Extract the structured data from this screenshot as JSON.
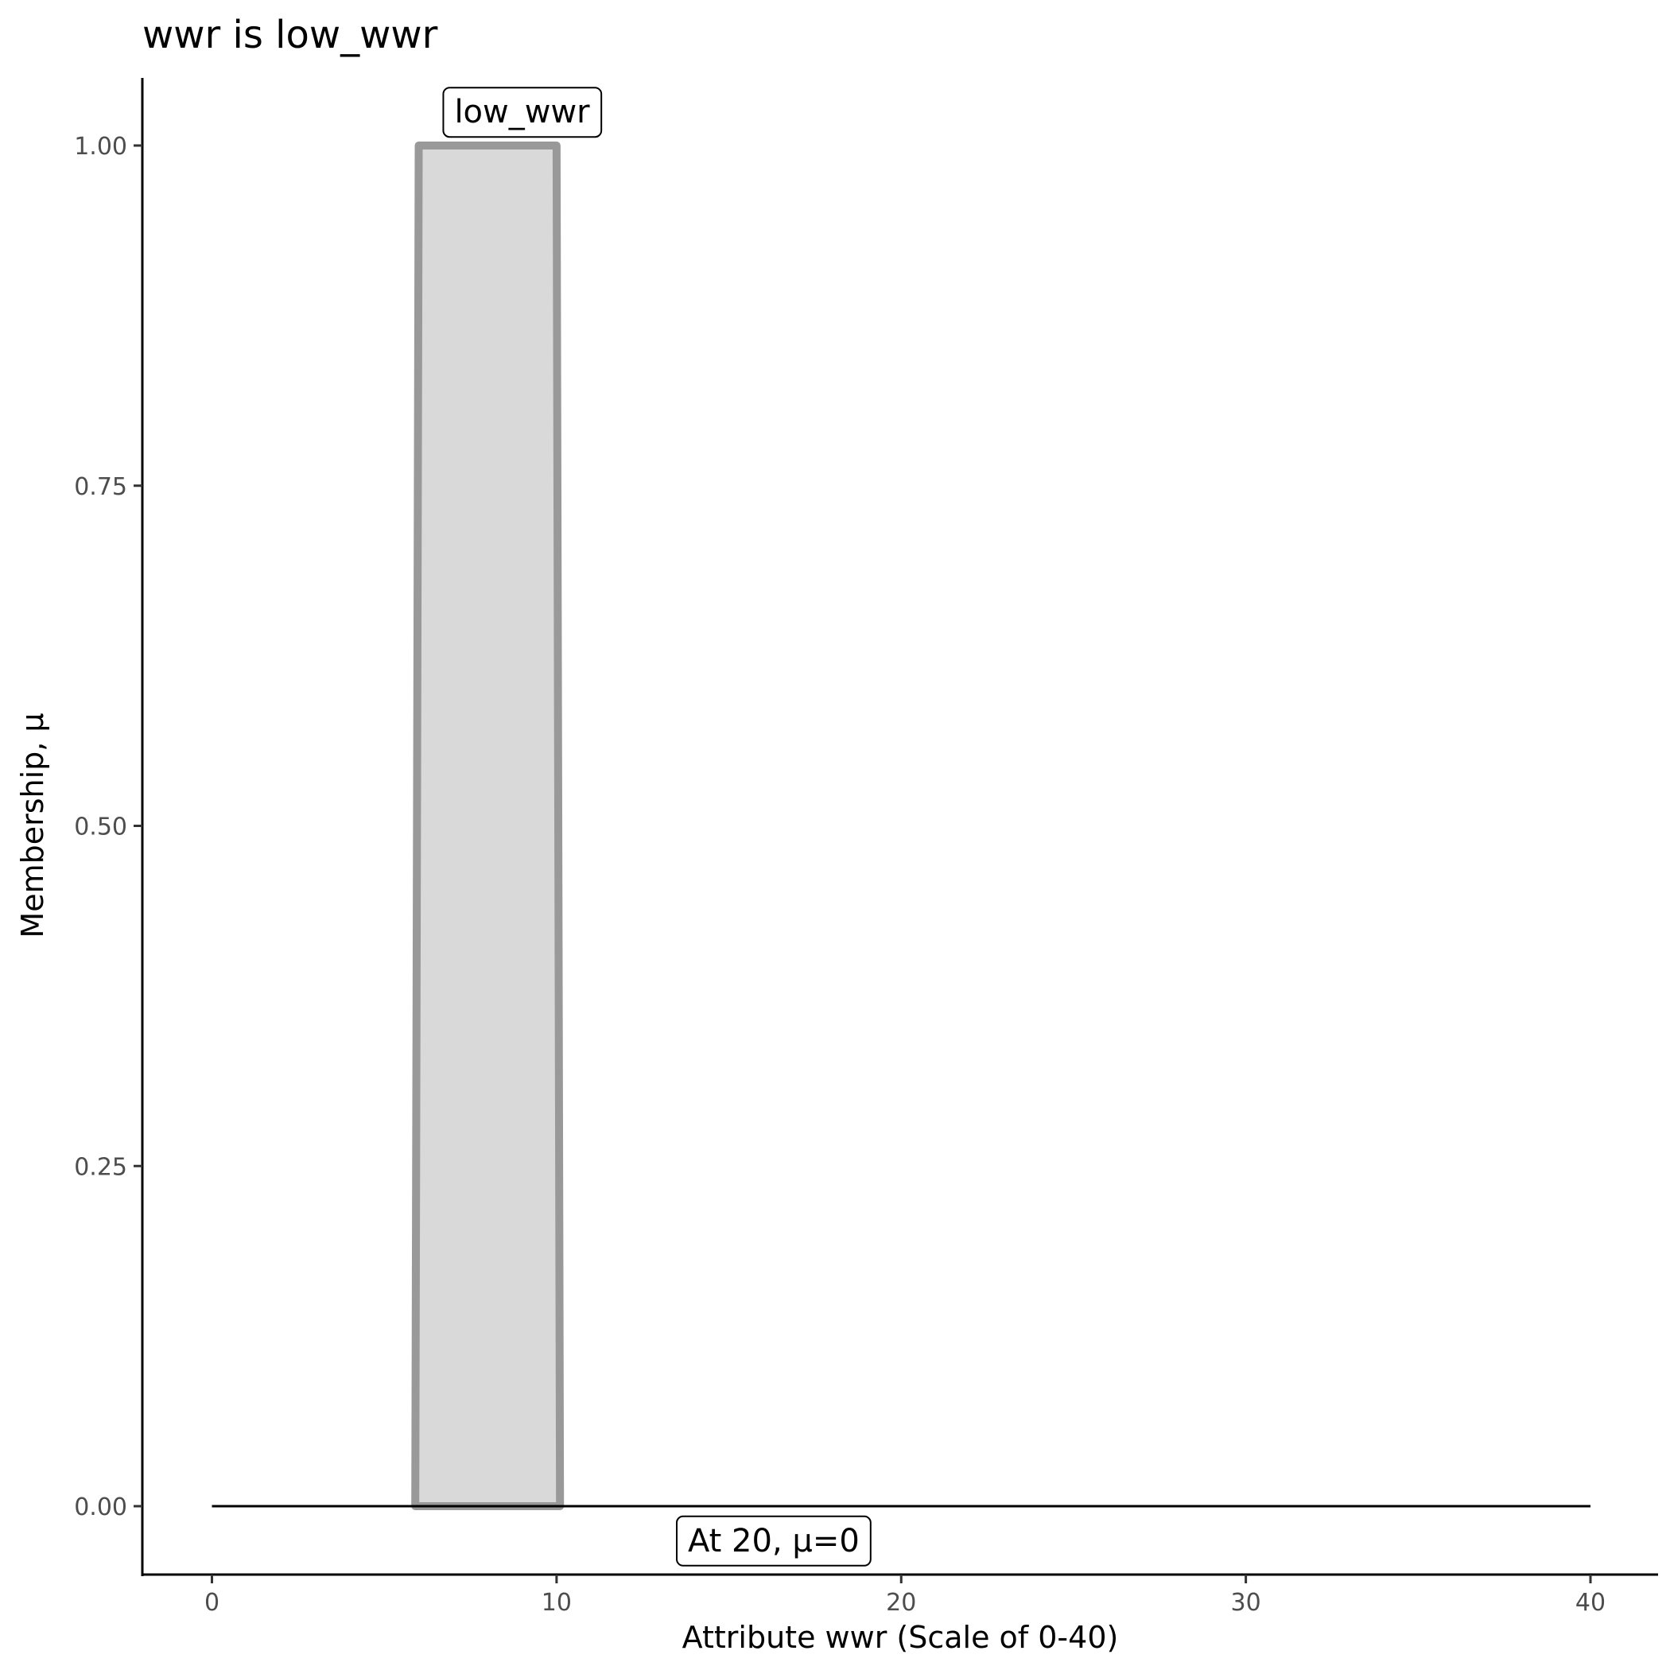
{
  "chart_data": {
    "type": "area",
    "title": "wwr is low_wwr",
    "xlabel": "Attribute wwr (Scale of 0-40)",
    "ylabel": "Membership, μ",
    "xlim": [
      -2,
      42
    ],
    "ylim": [
      -0.05,
      1.05
    ],
    "x_ticks": [
      0,
      10,
      20,
      30,
      40
    ],
    "x_tick_labels": [
      "0",
      "10",
      "20",
      "30",
      "40"
    ],
    "y_ticks": [
      0,
      0.25,
      0.5,
      0.75,
      1.0
    ],
    "y_tick_labels": [
      "0.00",
      "0.25",
      "0.50",
      "0.75",
      "1.00"
    ],
    "grid": false,
    "series": [
      {
        "name": "low_wwr",
        "x": [
          5.9,
          6,
          10,
          10.1
        ],
        "y": [
          0,
          1,
          1,
          0
        ],
        "fill": "#d9d9d9",
        "stroke": "#999999"
      }
    ],
    "baseline": {
      "x": [
        0,
        40
      ],
      "y": [
        0,
        0
      ],
      "color": "#000000"
    },
    "annotations": [
      {
        "text": "low_wwr",
        "x": 9,
        "y": 1.025
      },
      {
        "text": "At 20, μ=0",
        "x": 16.3,
        "y": -0.025
      }
    ]
  }
}
